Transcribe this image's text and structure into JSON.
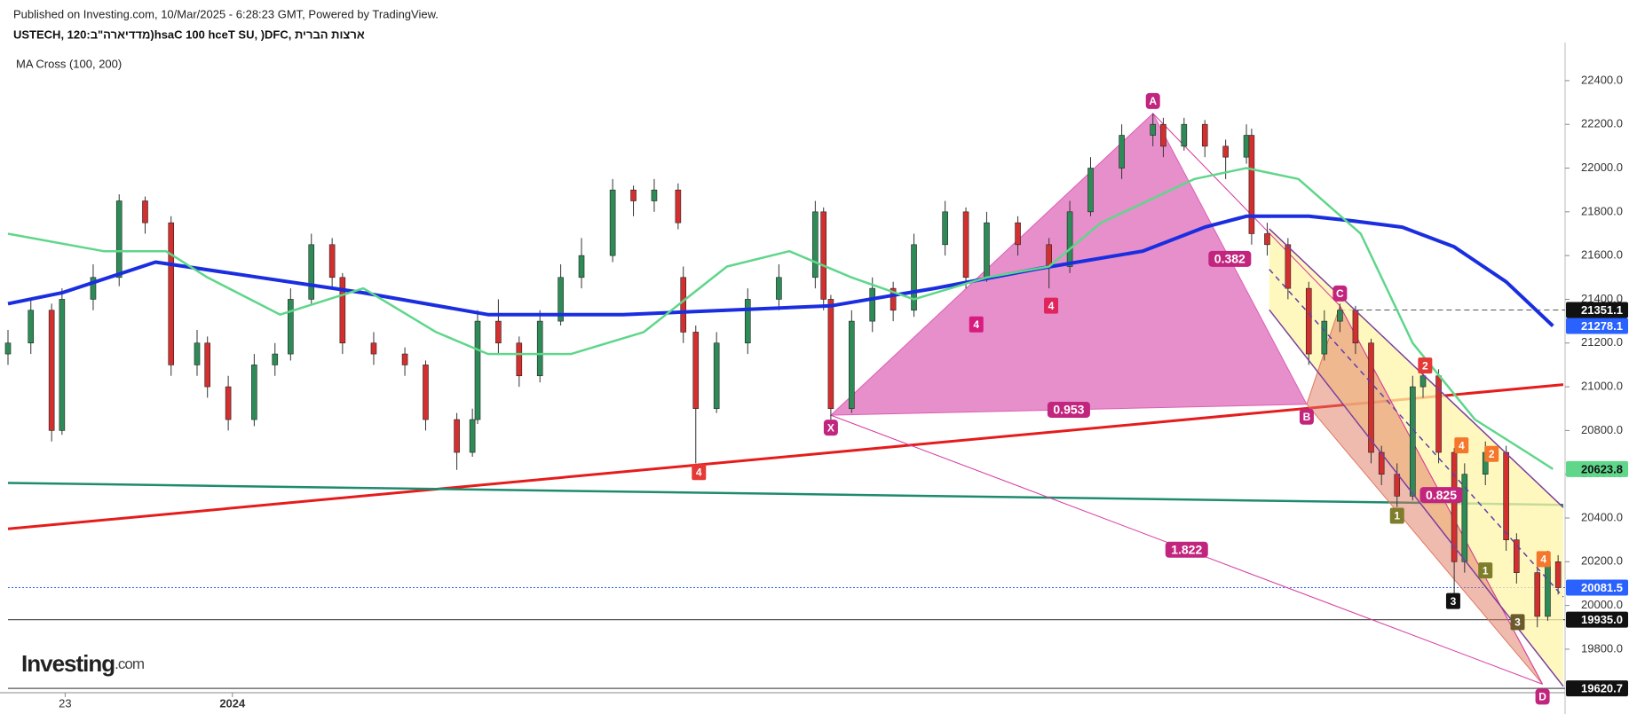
{
  "chart_data": {
    "type": "candlestick",
    "published": "Published on Investing.com, 10/Mar/2025 - 6:28:23 GMT, Powered by TradingView.",
    "title": "USTECH, 120:ב\"הראידדמ)hsaC 100 hceT SU, )DFC, תירבה תוצרא",
    "indicator": "MA Cross (100, 200)",
    "logo": [
      "Investing",
      ".com"
    ],
    "xlim": [
      0.8,
      150.5
    ],
    "ylim": [
      19605,
      22574
    ],
    "xticks": [
      {
        "value": 6.3,
        "label": "23"
      },
      {
        "value": 22.4,
        "label": "2024"
      }
    ],
    "yticks": [
      {
        "value": 19800,
        "label": "19800.0"
      },
      {
        "value": 20000,
        "label": "20000.0"
      },
      {
        "value": 20200,
        "label": "20200.0"
      },
      {
        "value": 20400,
        "label": "20400.0"
      },
      {
        "value": 20600,
        "label": "20600.0"
      },
      {
        "value": 20800,
        "label": "20800.0"
      },
      {
        "value": 21000,
        "label": "21000.0"
      },
      {
        "value": 21200,
        "label": "21200.0"
      },
      {
        "value": 21400,
        "label": "21400.0"
      },
      {
        "value": 21600,
        "label": "21600.0"
      },
      {
        "value": 21800,
        "label": "21800.0"
      },
      {
        "value": 22000,
        "label": "22000.0"
      },
      {
        "value": 22200,
        "label": "22200.0"
      },
      {
        "value": 22400,
        "label": "22400.0"
      }
    ],
    "up_color": "#2e8b57",
    "down_color": "#d32f2f",
    "x": [
      0.8,
      3.0,
      5.0,
      6.0,
      9.0,
      11.5,
      14.0,
      16.5,
      19.0,
      20.0,
      22.0,
      24.5,
      26.5,
      28.0,
      30.0,
      32.0,
      33.0,
      36.0,
      39.0,
      41.0,
      44.0,
      45.5,
      46.0,
      48.0,
      50.0,
      52.0,
      54.0,
      56.0,
      59.0,
      61.0,
      63.0,
      65.3,
      65.8,
      67.0,
      69.0,
      72.0,
      75.0,
      78.5,
      79.3,
      80.0,
      82.0,
      84.0,
      86.0,
      88.0,
      91.0,
      93.0,
      95.0,
      98.0,
      101.0,
      103.0,
      105.0,
      108.0,
      111.0,
      112.0,
      114.0,
      116.0,
      118.0,
      120.0,
      120.5,
      122.0,
      124.0,
      126.0,
      127.5,
      129.0,
      130.5,
      132.0,
      133.0,
      134.5,
      136.0,
      137.0,
      138.5,
      140.0,
      141.0,
      143.0,
      145.0,
      146.0,
      148.0,
      149.0,
      150.0
    ],
    "ohlc": [
      [
        21150,
        21260,
        21100,
        21200
      ],
      [
        21200,
        21400,
        21150,
        21350
      ],
      [
        21350,
        21380,
        20750,
        20800
      ],
      [
        20800,
        21450,
        20780,
        21400
      ],
      [
        21400,
        21560,
        21350,
        21500
      ],
      [
        21500,
        21880,
        21460,
        21850
      ],
      [
        21850,
        21870,
        21700,
        21750
      ],
      [
        21750,
        21780,
        21050,
        21100
      ],
      [
        21100,
        21260,
        21050,
        21200
      ],
      [
        21200,
        21230,
        20950,
        21000
      ],
      [
        21000,
        21050,
        20800,
        20850
      ],
      [
        20850,
        21150,
        20820,
        21100
      ],
      [
        21100,
        21200,
        21050,
        21150
      ],
      [
        21150,
        21450,
        21120,
        21400
      ],
      [
        21400,
        21700,
        21380,
        21650
      ],
      [
        21650,
        21680,
        21450,
        21500
      ],
      [
        21500,
        21520,
        21150,
        21200
      ],
      [
        21200,
        21250,
        21100,
        21150
      ],
      [
        21150,
        21180,
        21050,
        21100
      ],
      [
        21100,
        21120,
        20800,
        20850
      ],
      [
        20850,
        20880,
        20620,
        20700
      ],
      [
        20700,
        20900,
        20680,
        20850
      ],
      [
        20850,
        21350,
        20830,
        21300
      ],
      [
        21300,
        21400,
        21150,
        21200
      ],
      [
        21200,
        21230,
        21000,
        21050
      ],
      [
        21050,
        21350,
        21020,
        21300
      ],
      [
        21300,
        21560,
        21280,
        21500
      ],
      [
        21500,
        21680,
        21450,
        21600
      ],
      [
        21600,
        21950,
        21570,
        21900
      ],
      [
        21900,
        21920,
        21780,
        21850
      ],
      [
        21850,
        21950,
        21800,
        21900
      ],
      [
        21900,
        21930,
        21720,
        21750
      ],
      [
        21500,
        21550,
        21200,
        21250
      ],
      [
        21250,
        21280,
        20650,
        20900
      ],
      [
        20900,
        21250,
        20880,
        21200
      ],
      [
        21200,
        21450,
        21150,
        21400
      ],
      [
        21400,
        21560,
        21350,
        21500
      ],
      [
        21500,
        21850,
        21450,
        21800
      ],
      [
        21800,
        21820,
        21350,
        21400
      ],
      [
        21400,
        21420,
        20850,
        20900
      ],
      [
        20900,
        21350,
        20880,
        21300
      ],
      [
        21300,
        21500,
        21250,
        21450
      ],
      [
        21450,
        21480,
        21300,
        21350
      ],
      [
        21350,
        21700,
        21320,
        21650
      ],
      [
        21650,
        21850,
        21600,
        21800
      ],
      [
        21800,
        21820,
        21450,
        21500
      ],
      [
        21500,
        21800,
        21480,
        21750
      ],
      [
        21750,
        21780,
        21600,
        21650
      ],
      [
        21650,
        21680,
        21450,
        21550
      ],
      [
        21550,
        21850,
        21520,
        21800
      ],
      [
        21800,
        22050,
        21780,
        22000
      ],
      [
        22000,
        22200,
        21950,
        22150
      ],
      [
        22150,
        22250,
        22100,
        22200
      ],
      [
        22200,
        22230,
        22050,
        22100
      ],
      [
        22100,
        22230,
        22080,
        22200
      ],
      [
        22200,
        22220,
        22050,
        22100
      ],
      [
        22100,
        22130,
        21950,
        22050
      ],
      [
        22050,
        22200,
        22020,
        22150
      ],
      [
        22150,
        22180,
        21650,
        21700
      ],
      [
        21700,
        21750,
        21600,
        21650
      ],
      [
        21650,
        21680,
        21400,
        21450
      ],
      [
        21450,
        21480,
        21100,
        21150
      ],
      [
        21150,
        21350,
        21120,
        21300
      ],
      [
        21300,
        21380,
        21250,
        21350
      ],
      [
        21350,
        21370,
        21150,
        21200
      ],
      [
        21200,
        21220,
        20650,
        20700
      ],
      [
        20700,
        20730,
        20550,
        20600
      ],
      [
        20600,
        20650,
        20450,
        20500
      ],
      [
        20500,
        21050,
        20480,
        21000
      ],
      [
        21000,
        21100,
        20950,
        21050
      ],
      [
        21050,
        21080,
        20650,
        20700
      ],
      [
        20700,
        20720,
        20000,
        20200
      ],
      [
        20200,
        20650,
        20150,
        20600
      ],
      [
        20600,
        20750,
        20550,
        20700
      ],
      [
        20700,
        20730,
        20250,
        20300
      ],
      [
        20300,
        20330,
        20100,
        20150
      ],
      [
        20150,
        20180,
        19900,
        19950
      ],
      [
        19950,
        20250,
        19930,
        20200
      ],
      [
        20200,
        20230,
        20050,
        20081.5
      ]
    ],
    "series": [
      {
        "name": "MA 200",
        "color": "#1a2ee0",
        "x": [
          0.8,
          6.0,
          15.0,
          25.0,
          35.0,
          47.0,
          60.0,
          70.0,
          80.0,
          90.0,
          100.0,
          110.0,
          116.0,
          120.0,
          126.0,
          130.0,
          135.0,
          140.0,
          145.0,
          149.5
        ],
        "values": [
          21380,
          21430,
          21570,
          21500,
          21430,
          21330,
          21330,
          21350,
          21370,
          21450,
          21540,
          21620,
          21730,
          21780,
          21780,
          21760,
          21730,
          21640,
          21480,
          21278.1
        ]
      },
      {
        "name": "MA 100",
        "color": "#5fd68a",
        "x": [
          0.8,
          10.0,
          16.0,
          20.0,
          27.0,
          35.0,
          42.0,
          47.0,
          55.0,
          62.0,
          70.0,
          76.0,
          82.0,
          88.0,
          95.0,
          101.0,
          106.0,
          115.0,
          120.0,
          125.0,
          131.0,
          136.0,
          142.0,
          147.0,
          149.5
        ],
        "values": [
          21700,
          21620,
          21620,
          21500,
          21330,
          21450,
          21250,
          21150,
          21150,
          21250,
          21550,
          21620,
          21500,
          21400,
          21500,
          21550,
          21750,
          21950,
          22000,
          21950,
          21700,
          21200,
          20850,
          20700,
          20623.8
        ]
      }
    ],
    "trendlines": [
      {
        "color": "#e51c1c",
        "x": [
          0.8,
          150.5
        ],
        "values": [
          20350,
          21010
        ]
      },
      {
        "color": "#1e8a6e",
        "x": [
          0.8,
          150.5
        ],
        "values": [
          20560,
          20460
        ]
      }
    ],
    "channel": {
      "x": [
        122.2,
        150.5
      ],
      "upper": [
        21722,
        20448
      ],
      "lower": [
        21352,
        19630
      ]
    },
    "pattern": {
      "labels": [
        "X",
        "A",
        "B",
        "C",
        "D"
      ],
      "x": [
        80.0,
        111.0,
        125.8,
        129.0,
        148.5
      ],
      "y": [
        20870,
        22250,
        20920,
        21370,
        19640
      ],
      "ratios": [
        "0.953",
        "0.382",
        "1.822",
        "0.825"
      ]
    },
    "waves": {
      "labels": [
        "4",
        "4",
        "4",
        "2",
        "4",
        "2",
        "1",
        "1",
        "3",
        "3",
        "4"
      ],
      "x": [
        67.3,
        94.0,
        101.2,
        137.2,
        140.7,
        143.6,
        134.5,
        143.0,
        139.9,
        146.1,
        148.6
      ],
      "y": [
        20610,
        21285,
        21371,
        21097,
        20732,
        20693,
        20410,
        20160,
        20020,
        19924,
        20212
      ],
      "colors": [
        "#e53935",
        "#d81b7f",
        "#e0245e",
        "#e53935",
        "#f4772b",
        "#f4772b",
        "#7d7d2a",
        "#7d7d2a",
        "#111111",
        "#6b5a2a",
        "#f4772b"
      ]
    },
    "price_tags": [
      {
        "value": 21351.1,
        "label": "21351.1",
        "color": "#111111",
        "text_color": "#ffffff",
        "line": "dashed",
        "line_start": 129.0
      },
      {
        "value": 21278.1,
        "label": "21278.1",
        "color": "#2962ff",
        "text_color": "#ffffff"
      },
      {
        "value": 20623.8,
        "label": "20623.8",
        "color": "#5fd68a",
        "text_color": "#111111"
      },
      {
        "value": 20081.5,
        "label": "20081.5",
        "color": "#2962ff",
        "text_color": "#ffffff",
        "line": "dotted",
        "line_start": 0.8
      },
      {
        "value": 19935,
        "label": "19935.0",
        "color": "#111111",
        "text_color": "#ffffff",
        "line": "solid",
        "line_start": 0.8
      },
      {
        "value": 19620.7,
        "label": "19620.7",
        "color": "#111111",
        "text_color": "#ffffff",
        "line": "solid",
        "line_start": 0.8
      }
    ]
  }
}
